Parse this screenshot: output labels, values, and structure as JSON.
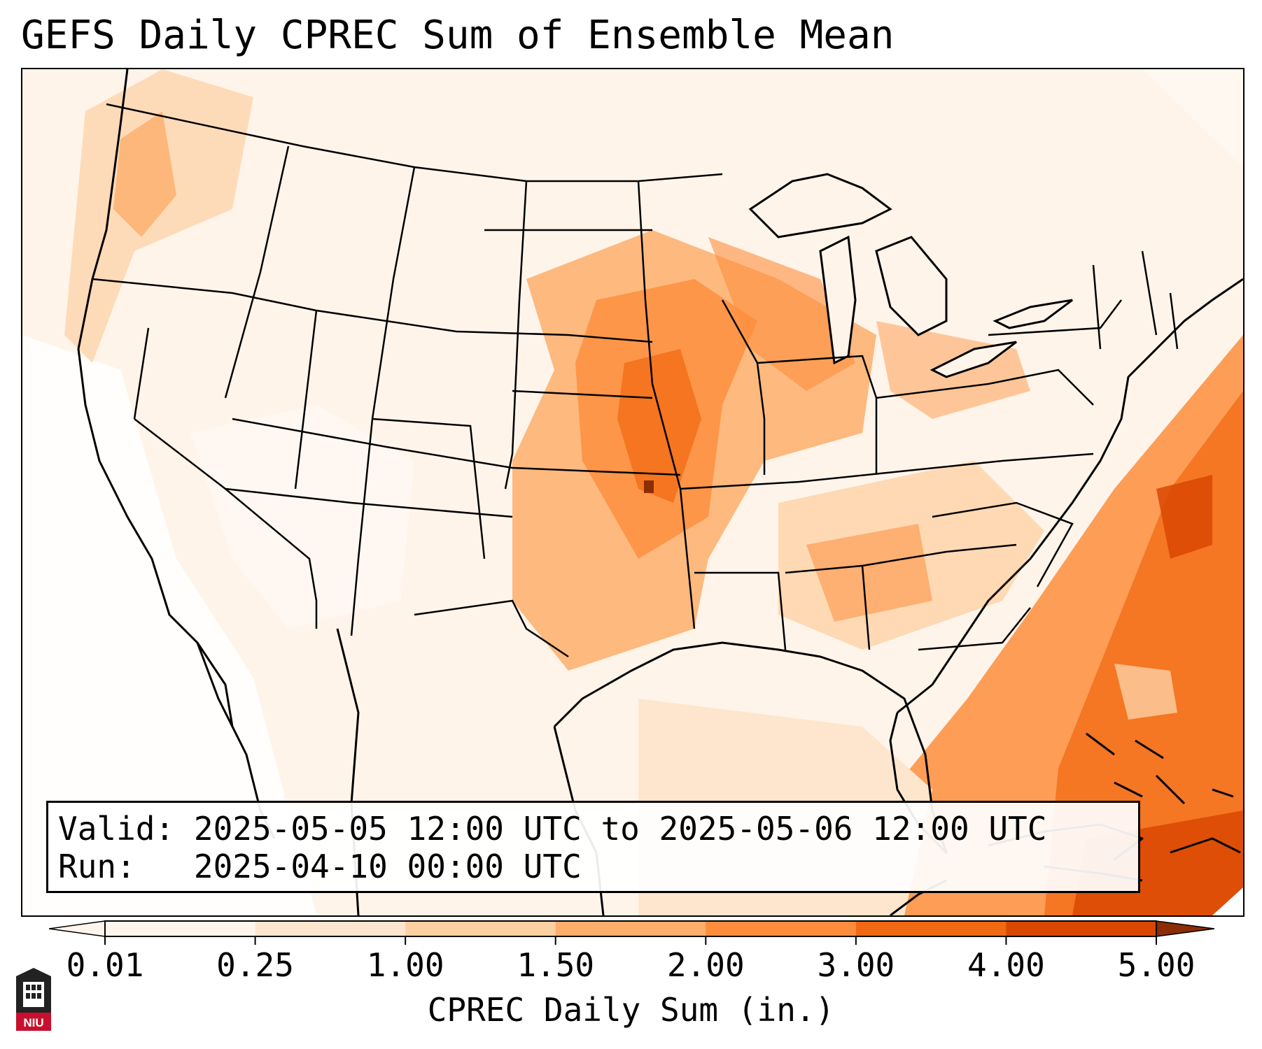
{
  "title": "GEFS Daily CPREC Sum of Ensemble Mean",
  "info": {
    "valid_label": "Valid:",
    "valid_value": "2025-05-05 12:00 UTC to 2025-05-06 12:00 UTC",
    "run_label": "Run:",
    "run_value": "2025-04-10 00:00 UTC"
  },
  "colorbar": {
    "ticks": [
      "0.01",
      "0.25",
      "1.00",
      "1.50",
      "2.00",
      "3.00",
      "4.00",
      "5.00"
    ],
    "colors": [
      "#fff5eb",
      "#fee6ce",
      "#fdd0a2",
      "#fdae6b",
      "#fd8d3c",
      "#f16913",
      "#d94801",
      "#8c2d04"
    ],
    "label": "CPREC Daily Sum (in.)"
  },
  "logo": {
    "text": "NIU",
    "icon": "university-tower-logo",
    "color": "#c8102e"
  }
}
